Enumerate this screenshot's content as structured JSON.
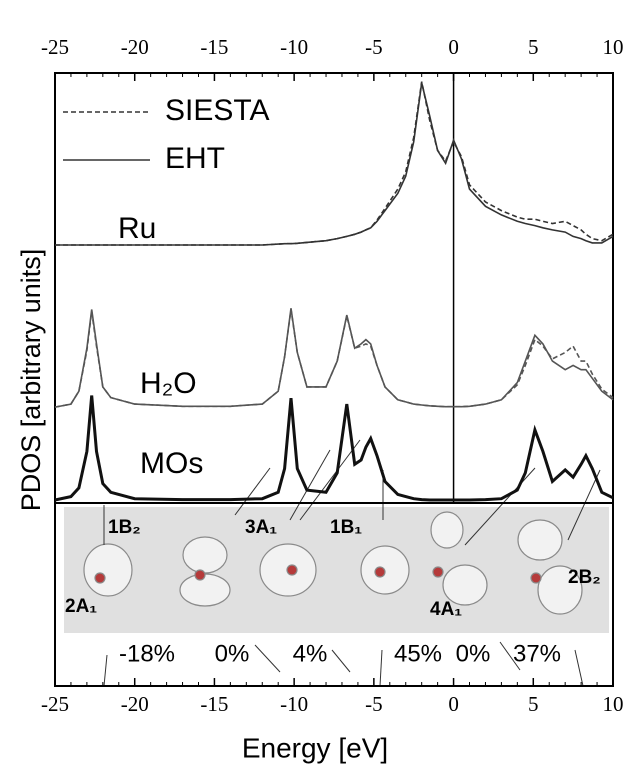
{
  "chart_data": {
    "type": "line",
    "x_label": "Energy [eV]",
    "y_label": "PDOS [arbitrary units]",
    "xlim": [
      -25,
      10
    ],
    "ylim": [
      0,
      100
    ],
    "xticks": [
      -25,
      -20,
      -15,
      -10,
      -5,
      0,
      5,
      10
    ],
    "x": [
      -25,
      -24,
      -23.5,
      -23,
      -22.7,
      -22.4,
      -22,
      -21.5,
      -20,
      -17,
      -14,
      -12,
      -11,
      -10.6,
      -10.2,
      -9.8,
      -9.2,
      -8,
      -7.3,
      -6.7,
      -6.2,
      -5.8,
      -5.5,
      -5.2,
      -4.8,
      -4.3,
      -3.5,
      -3,
      -2.5,
      -2,
      -1.5,
      -1,
      -0.5,
      0,
      0.5,
      1,
      2,
      3,
      4,
      4.5,
      5.1,
      5.6,
      6.2,
      7,
      7.5,
      8,
      8.3,
      8.7,
      9.3,
      10
    ],
    "series": [
      {
        "name": "SIESTA",
        "color": "#333333",
        "dash": true,
        "values": [
          60,
          60,
          60,
          60,
          60,
          60,
          60,
          60,
          60,
          60,
          60,
          60,
          60.2,
          60.3,
          60.3,
          60.4,
          60.6,
          61,
          61.5,
          62,
          62.5,
          63,
          63.5,
          64,
          65.8,
          68.5,
          73,
          77,
          85,
          98,
          89,
          82,
          79.5,
          84,
          80.5,
          74,
          70,
          68,
          66.5,
          66,
          66,
          65.5,
          65,
          65.5,
          64.5,
          63.5,
          62.5,
          61.5,
          61,
          62.5
        ]
      },
      {
        "name": "EHT",
        "color": "#333333",
        "dash": false,
        "values": [
          60,
          60,
          60,
          60,
          60,
          60,
          60,
          60,
          60,
          60,
          60,
          60,
          60.2,
          60.3,
          60.3,
          60.4,
          60.6,
          61,
          61.5,
          62,
          62.5,
          63,
          63.5,
          64,
          65.5,
          68,
          72,
          76,
          84,
          97.7,
          90,
          82,
          79,
          84.4,
          80,
          73,
          69,
          67,
          65.5,
          65,
          64.5,
          64,
          63.5,
          63,
          62,
          61.5,
          61,
          60.5,
          60.5,
          62
        ]
      },
      {
        "name": "SIESTA",
        "color": "#555555",
        "dash": true,
        "values": [
          22.3,
          23,
          26,
          35.5,
          44.5,
          36.5,
          27,
          24.5,
          23,
          22.5,
          22.5,
          23,
          26,
          34,
          45,
          35,
          27,
          27,
          33,
          43.5,
          36,
          36.5,
          37,
          36.5,
          32,
          27,
          24,
          23.5,
          23,
          22.8,
          22.6,
          22.5,
          22.4,
          22.4,
          22.4,
          22.5,
          23,
          24,
          27.5,
          32,
          38,
          36.5,
          33.5,
          35,
          36.5,
          33,
          33,
          30,
          26.5,
          24.5
        ]
      },
      {
        "name": "EHT",
        "color": "#555555",
        "dash": false,
        "values": [
          22.3,
          23,
          26,
          36,
          45,
          37,
          27,
          24.5,
          23,
          22.5,
          22.5,
          23,
          26,
          34,
          45.3,
          35,
          27,
          27,
          33,
          43.7,
          36,
          37,
          38,
          37,
          32,
          27,
          24,
          23.5,
          23,
          22.8,
          22.6,
          22.5,
          22.4,
          22.4,
          22.4,
          22.5,
          23,
          24,
          28,
          33,
          39,
          37,
          33,
          31,
          32,
          31,
          31,
          29,
          26,
          24
        ]
      },
      {
        "name": "EHT",
        "color": "#111111",
        "dash": false,
        "values": [
          0.7,
          1.5,
          3.5,
          12,
          25,
          12,
          4.5,
          2.5,
          1,
          0.8,
          0.8,
          1,
          2.5,
          8,
          24.4,
          8,
          3,
          2.5,
          7,
          23,
          9,
          10,
          13,
          15,
          11,
          5,
          2,
          1.5,
          1,
          0.8,
          0.7,
          0.7,
          0.7,
          0.7,
          0.7,
          0.7,
          0.8,
          1,
          3,
          7,
          17,
          12,
          5,
          7.7,
          6,
          9,
          11,
          8,
          2.5,
          1.2
        ]
      }
    ],
    "curve_labels": [
      "Ru",
      "H₂O",
      "MOs"
    ],
    "orbital_labels": [
      "2A₁",
      "1B₂",
      "3A₁",
      "1B₁",
      "4A₁",
      "2B₂"
    ],
    "percentages": [
      "-18%",
      "0%",
      "4%",
      "45%",
      "0%",
      "37%"
    ]
  }
}
